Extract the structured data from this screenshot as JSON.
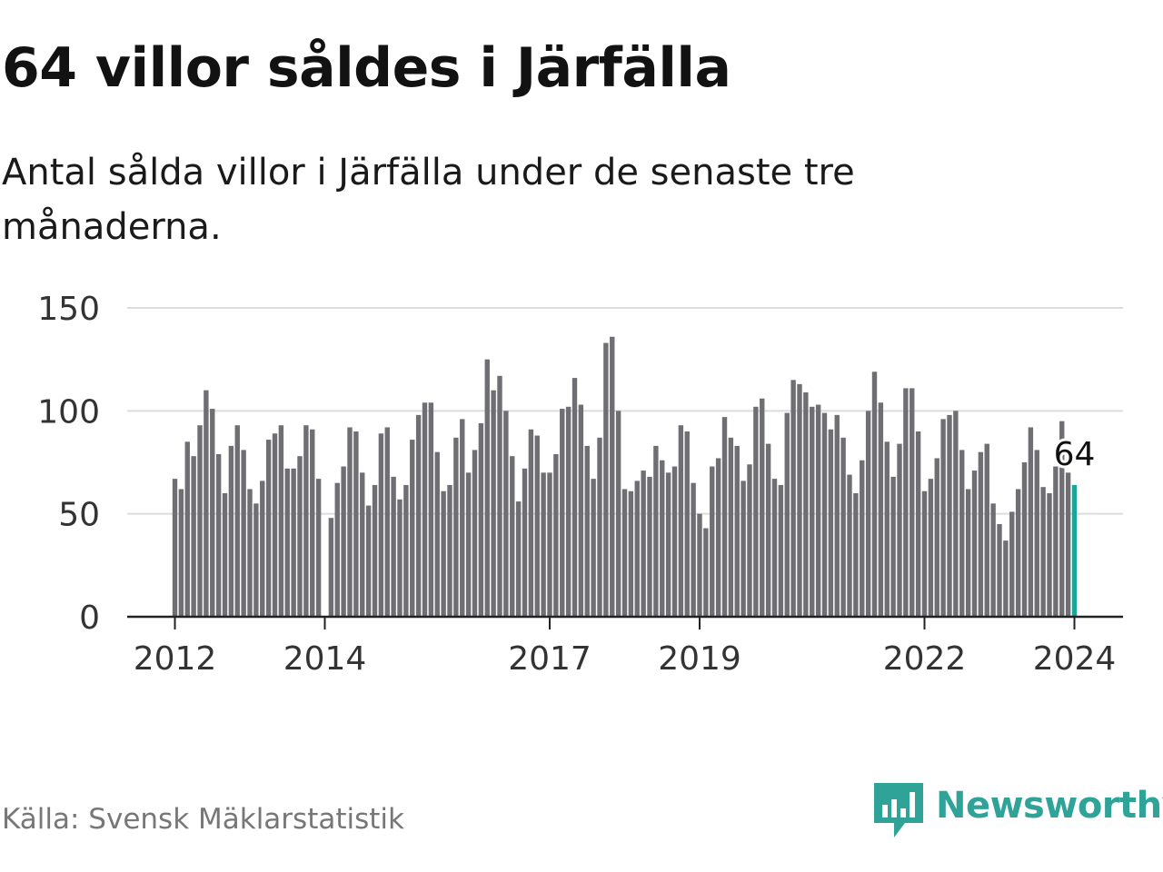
{
  "header": {
    "title": "64 villor såldes i Järfälla",
    "subtitle": "Antal sålda villor i Järfälla under de senaste tre månaderna."
  },
  "footer": {
    "source": "Källa: Svensk Mäklarstatistik",
    "brand": "Newsworthy",
    "brand_icon": "bar-chart-logo-icon"
  },
  "colors": {
    "bar": "#6e6e73",
    "highlight": "#1aa79b",
    "grid": "#dcdcdc",
    "axis": "#222222",
    "brand": "#2fa398"
  },
  "chart_data": {
    "type": "bar",
    "title": "Antal sålda villor i Järfälla under de senaste tre månaderna.",
    "xlabel": "",
    "ylabel": "",
    "ylim": [
      0,
      150
    ],
    "yticks": [
      "0",
      "50",
      "100",
      "150"
    ],
    "grid": true,
    "start": "2012-01",
    "frequency": "monthly",
    "xticks": [
      {
        "label": "2012",
        "index": 0
      },
      {
        "label": "2014",
        "index": 24
      },
      {
        "label": "2017",
        "index": 60
      },
      {
        "label": "2019",
        "index": 84
      },
      {
        "label": "2022",
        "index": 120
      },
      {
        "label": "2024",
        "index": 144
      }
    ],
    "values": [
      67,
      62,
      85,
      78,
      93,
      110,
      101,
      79,
      60,
      83,
      93,
      81,
      62,
      55,
      66,
      86,
      89,
      93,
      72,
      72,
      78,
      93,
      91,
      67,
      0,
      48,
      65,
      73,
      92,
      90,
      70,
      54,
      64,
      89,
      92,
      68,
      57,
      64,
      86,
      98,
      104,
      104,
      80,
      61,
      64,
      87,
      96,
      70,
      81,
      94,
      125,
      110,
      117,
      100,
      78,
      56,
      72,
      91,
      88,
      70,
      70,
      79,
      101,
      102,
      116,
      103,
      83,
      67,
      87,
      133,
      136,
      100,
      62,
      61,
      66,
      71,
      68,
      83,
      76,
      70,
      73,
      93,
      90,
      65,
      50,
      43,
      73,
      77,
      97,
      87,
      83,
      66,
      74,
      102,
      106,
      84,
      67,
      64,
      99,
      115,
      113,
      109,
      102,
      103,
      99,
      91,
      98,
      87,
      69,
      60,
      76,
      100,
      119,
      104,
      85,
      68,
      84,
      111,
      111,
      90,
      61,
      67,
      77,
      96,
      98,
      100,
      81,
      62,
      71,
      80,
      84,
      55,
      45,
      37,
      51,
      62,
      75,
      92,
      81,
      63,
      60,
      73,
      95,
      70,
      64
    ],
    "highlight_index": 144,
    "annotation": "64"
  }
}
